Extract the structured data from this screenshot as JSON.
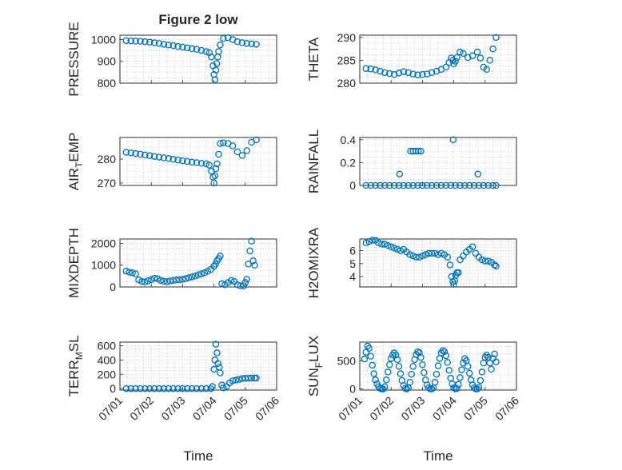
{
  "figure": {
    "title": "Figure 2 low",
    "marker_color": "#0072BD"
  },
  "chart_data": [
    {
      "type": "scatter",
      "ylabel": "PRESSURE",
      "xlabel": "",
      "title": "Figure 2 low",
      "xlim": [
        "07/01",
        "07/06"
      ],
      "ylim": [
        800,
        1020
      ],
      "yticks": [
        800,
        900,
        1000
      ],
      "xticks": [
        "07/01",
        "07/02",
        "07/03",
        "07/04",
        "07/05",
        "07/06"
      ],
      "show_xticklabels": false,
      "grid": true,
      "series": [
        {
          "x": [
            1.2,
            1.35,
            1.5,
            1.65,
            1.8,
            1.95,
            2.1,
            2.25,
            2.4,
            2.55,
            2.7,
            2.85,
            3.0,
            3.15,
            3.3,
            3.45,
            3.6,
            3.75,
            3.85,
            3.92,
            3.97,
            4.0,
            4.03,
            4.06,
            4.09,
            4.12,
            4.15,
            4.2,
            4.3,
            4.45,
            4.6,
            4.75,
            4.9,
            5.05,
            5.2,
            5.35
          ],
          "y": [
            995,
            994,
            993,
            992,
            990,
            988,
            985,
            982,
            978,
            975,
            972,
            968,
            965,
            962,
            958,
            955,
            950,
            945,
            940,
            920,
            880,
            840,
            815,
            860,
            890,
            920,
            945,
            975,
            1005,
            1008,
            1000,
            990,
            985,
            982,
            980,
            978
          ]
        }
      ]
    },
    {
      "type": "scatter",
      "ylabel": "THETA",
      "xlabel": "",
      "xlim": [
        "07/01",
        "07/06"
      ],
      "ylim": [
        280,
        290.5
      ],
      "yticks": [
        280,
        285,
        290
      ],
      "xticks": [
        "07/01",
        "07/02",
        "07/03",
        "07/04",
        "07/05",
        "07/06"
      ],
      "show_xticklabels": false,
      "grid": true,
      "series": [
        {
          "x": [
            1.2,
            1.35,
            1.5,
            1.65,
            1.8,
            1.95,
            2.1,
            2.25,
            2.4,
            2.55,
            2.7,
            2.85,
            3.0,
            3.15,
            3.3,
            3.45,
            3.6,
            3.75,
            3.85,
            3.92,
            3.97,
            4.0,
            4.05,
            4.1,
            4.2,
            4.3,
            4.45,
            4.6,
            4.75,
            4.85,
            4.95,
            5.05,
            5.15,
            5.25,
            5.35
          ],
          "y": [
            283.2,
            283.1,
            282.9,
            282.6,
            282.3,
            282.1,
            281.9,
            282.2,
            282.5,
            282.3,
            282,
            281.8,
            281.9,
            282,
            282.3,
            282.6,
            283,
            283.5,
            284.5,
            285.5,
            285,
            284.2,
            284.8,
            285.6,
            286.8,
            286.5,
            285.6,
            286,
            286.8,
            285.5,
            283.5,
            283,
            285,
            287.5,
            290
          ]
        }
      ]
    },
    {
      "type": "scatter",
      "ylabel": "AIR_TEMP",
      "ylabel_display": {
        "base": "AIR",
        "sub": "T",
        "rest": "EMP"
      },
      "xlabel": "",
      "xlim": [
        "07/01",
        "07/06"
      ],
      "ylim": [
        269,
        289
      ],
      "yticks": [
        270,
        280
      ],
      "xticks": [
        "07/01",
        "07/02",
        "07/03",
        "07/04",
        "07/05",
        "07/06"
      ],
      "show_xticklabels": false,
      "grid": true,
      "series": [
        {
          "x": [
            1.2,
            1.35,
            1.5,
            1.65,
            1.8,
            1.95,
            2.1,
            2.25,
            2.4,
            2.55,
            2.7,
            2.85,
            3.0,
            3.15,
            3.3,
            3.45,
            3.6,
            3.75,
            3.85,
            3.92,
            3.97,
            4.0,
            4.03,
            4.06,
            4.1,
            4.15,
            4.2,
            4.3,
            4.45,
            4.6,
            4.75,
            4.9,
            5.05,
            5.2,
            5.35
          ],
          "y": [
            282.8,
            282.6,
            282.3,
            282,
            281.7,
            281.4,
            281.1,
            280.8,
            280.5,
            280.2,
            279.9,
            279.6,
            279.3,
            279,
            278.7,
            278.5,
            278.2,
            278,
            277.5,
            275,
            272.5,
            270,
            273,
            276,
            278,
            282,
            286.5,
            286.8,
            286.5,
            285.5,
            283,
            281.5,
            283.5,
            287,
            288
          ]
        }
      ]
    },
    {
      "type": "scatter",
      "ylabel": "RAINFALL",
      "xlabel": "",
      "xlim": [
        "07/01",
        "07/06"
      ],
      "ylim": [
        0,
        0.42
      ],
      "yticks": [
        0,
        0.2,
        0.4
      ],
      "xticks": [
        "07/01",
        "07/02",
        "07/03",
        "07/04",
        "07/05",
        "07/06"
      ],
      "show_xticklabels": false,
      "grid": true,
      "series": [
        {
          "x": [
            1.2,
            1.35,
            1.5,
            1.65,
            1.8,
            1.95,
            2.1,
            2.25,
            2.4,
            2.55,
            2.7,
            2.85,
            3.0,
            3.15,
            3.3,
            3.45,
            3.6,
            3.75,
            3.9,
            4.05,
            4.2,
            4.35,
            4.5,
            4.65,
            4.8,
            4.95,
            5.1,
            5.25,
            5.35,
            2.27,
            2.62,
            2.7,
            2.79,
            2.87,
            2.95,
            3.0,
            3.98,
            4.77
          ],
          "y": [
            0,
            0,
            0,
            0,
            0,
            0,
            0,
            0,
            0,
            0,
            0,
            0,
            0,
            0,
            0,
            0,
            0,
            0,
            0,
            0,
            0,
            0,
            0,
            0,
            0,
            0,
            0,
            0,
            0,
            0.1,
            0.3,
            0.3,
            0.3,
            0.3,
            0.3,
            0,
            0.4,
            0.1
          ]
        }
      ]
    },
    {
      "type": "scatter",
      "ylabel": "MIXDEPTH",
      "xlabel": "",
      "xlim": [
        "07/01",
        "07/06"
      ],
      "ylim": [
        0,
        2200
      ],
      "yticks": [
        0,
        1000,
        2000
      ],
      "xticks": [
        "07/01",
        "07/02",
        "07/03",
        "07/04",
        "07/05",
        "07/06"
      ],
      "show_xticklabels": false,
      "grid": true,
      "series": [
        {
          "x": [
            1.2,
            1.3,
            1.4,
            1.5,
            1.6,
            1.7,
            1.8,
            1.9,
            2.0,
            2.1,
            2.2,
            2.3,
            2.4,
            2.5,
            2.6,
            2.7,
            2.8,
            2.9,
            3.0,
            3.1,
            3.2,
            3.3,
            3.4,
            3.5,
            3.6,
            3.7,
            3.8,
            3.9,
            4.0,
            4.05,
            4.1,
            4.15,
            4.2,
            4.25,
            4.35,
            4.45,
            4.55,
            4.65,
            4.75,
            4.85,
            4.95,
            5.0,
            5.05,
            5.1,
            5.15,
            5.2,
            5.25,
            5.3
          ],
          "y": [
            730,
            680,
            650,
            600,
            320,
            250,
            230,
            280,
            330,
            400,
            380,
            300,
            260,
            240,
            270,
            300,
            320,
            330,
            350,
            380,
            420,
            460,
            500,
            560,
            600,
            650,
            720,
            800,
            950,
            1050,
            1200,
            1300,
            1420,
            150,
            100,
            200,
            300,
            250,
            100,
            50,
            50,
            200,
            350,
            1050,
            1650,
            2100,
            1200,
            1000
          ]
        }
      ]
    },
    {
      "type": "scatter",
      "ylabel": "H2OMIXRA",
      "xlabel": "",
      "xlim": [
        "07/01",
        "07/06"
      ],
      "ylim": [
        3.2,
        6.9
      ],
      "yticks": [
        4,
        5,
        6
      ],
      "xticks": [
        "07/01",
        "07/02",
        "07/03",
        "07/04",
        "07/05",
        "07/06"
      ],
      "show_xticklabels": false,
      "grid": true,
      "series": [
        {
          "x": [
            1.2,
            1.3,
            1.4,
            1.5,
            1.6,
            1.7,
            1.8,
            1.9,
            2.0,
            2.1,
            2.2,
            2.3,
            2.4,
            2.5,
            2.6,
            2.7,
            2.8,
            2.9,
            3.0,
            3.1,
            3.2,
            3.3,
            3.4,
            3.5,
            3.6,
            3.7,
            3.8,
            3.88,
            3.93,
            3.97,
            4.0,
            4.03,
            4.06,
            4.1,
            4.15,
            4.2,
            4.3,
            4.4,
            4.5,
            4.6,
            4.7,
            4.8,
            4.9,
            5.0,
            5.1,
            5.2,
            5.3,
            5.35
          ],
          "y": [
            6.6,
            6.7,
            6.8,
            6.8,
            6.6,
            6.5,
            6.5,
            6.4,
            6.3,
            6.2,
            6.1,
            6.0,
            6.1,
            5.9,
            5.7,
            5.6,
            5.5,
            5.5,
            5.6,
            5.7,
            5.8,
            5.8,
            5.8,
            5.7,
            5.8,
            5.7,
            5.5,
            4.9,
            4.0,
            3.6,
            3.4,
            3.7,
            4.1,
            4.3,
            4.3,
            5.3,
            5.6,
            5.9,
            6.1,
            6.3,
            5.8,
            5.5,
            5.3,
            5.2,
            5.2,
            5.1,
            4.9,
            4.8
          ]
        }
      ]
    },
    {
      "type": "scatter",
      "ylabel": "TERR_MSL",
      "ylabel_display": {
        "base": "TERR",
        "sub": "M",
        "rest": "SL"
      },
      "xlabel": "Time",
      "xlim": [
        "07/01",
        "07/06"
      ],
      "ylim": [
        -20,
        650
      ],
      "yticks": [
        0,
        200,
        400,
        600
      ],
      "xticks": [
        "07/01",
        "07/02",
        "07/03",
        "07/04",
        "07/05",
        "07/06"
      ],
      "show_xticklabels": true,
      "grid": true,
      "series": [
        {
          "x": [
            1.2,
            1.35,
            1.5,
            1.65,
            1.8,
            1.95,
            2.1,
            2.25,
            2.4,
            2.55,
            2.7,
            2.85,
            3.0,
            3.15,
            3.3,
            3.45,
            3.6,
            3.75,
            3.9,
            3.95,
            4.0,
            4.03,
            4.06,
            4.1,
            4.13,
            4.17,
            4.2,
            4.25,
            4.3,
            4.4,
            4.5,
            4.6,
            4.7,
            4.8,
            4.9,
            5.0,
            5.1,
            5.2,
            5.3,
            5.35
          ],
          "y": [
            0,
            0,
            0,
            0,
            0,
            0,
            0,
            0,
            0,
            0,
            0,
            0,
            0,
            0,
            0,
            0,
            0,
            0,
            0,
            30,
            270,
            400,
            620,
            500,
            350,
            300,
            220,
            50,
            10,
            30,
            80,
            110,
            120,
            130,
            140,
            145,
            145,
            148,
            148,
            148
          ]
        }
      ]
    },
    {
      "type": "scatter",
      "ylabel": "SUN_FLUX",
      "ylabel_display": {
        "base": "SUN",
        "sub": "F",
        "rest": "LUX"
      },
      "xlabel": "Time",
      "xlim": [
        "07/01",
        "07/06"
      ],
      "ylim": [
        -20,
        830
      ],
      "yticks": [
        0,
        500
      ],
      "xticks": [
        "07/01",
        "07/02",
        "07/03",
        "07/04",
        "07/05",
        "07/06"
      ],
      "show_xticklabels": true,
      "grid": true,
      "series": [
        {
          "x": [
            1.15,
            1.2,
            1.25,
            1.3,
            1.35,
            1.4,
            1.45,
            1.5,
            1.55,
            1.6,
            1.65,
            1.7,
            1.75,
            1.8,
            1.85,
            1.9,
            1.95,
            2.0,
            2.05,
            2.1,
            2.15,
            2.2,
            2.25,
            2.3,
            2.35,
            2.4,
            2.45,
            2.5,
            2.55,
            2.6,
            2.65,
            2.7,
            2.75,
            2.8,
            2.85,
            2.9,
            2.95,
            3.0,
            3.05,
            3.1,
            3.15,
            3.2,
            3.25,
            3.3,
            3.35,
            3.4,
            3.45,
            3.5,
            3.55,
            3.6,
            3.65,
            3.7,
            3.75,
            3.8,
            3.85,
            3.9,
            3.95,
            4.0,
            4.05,
            4.1,
            4.15,
            4.2,
            4.25,
            4.3,
            4.35,
            4.4,
            4.45,
            4.5,
            4.55,
            4.6,
            4.65,
            4.7,
            4.75,
            4.8,
            4.85,
            4.9,
            4.95,
            5.0,
            5.05,
            5.1,
            5.15,
            5.2,
            5.25,
            5.3,
            5.35
          ],
          "y": [
            530,
            650,
            760,
            720,
            580,
            420,
            270,
            160,
            90,
            40,
            10,
            0,
            0,
            40,
            160,
            300,
            430,
            540,
            600,
            640,
            600,
            520,
            400,
            270,
            150,
            60,
            10,
            0,
            20,
            120,
            260,
            400,
            520,
            610,
            660,
            640,
            560,
            430,
            290,
            160,
            70,
            20,
            0,
            0,
            20,
            120,
            260,
            410,
            540,
            640,
            680,
            660,
            590,
            470,
            330,
            190,
            90,
            20,
            0,
            10,
            80,
            200,
            340,
            460,
            540,
            500,
            400,
            280,
            160,
            70,
            20,
            0,
            0,
            30,
            150,
            300,
            460,
            560,
            600,
            560,
            460,
            350,
            540,
            620,
            480
          ]
        }
      ]
    }
  ]
}
